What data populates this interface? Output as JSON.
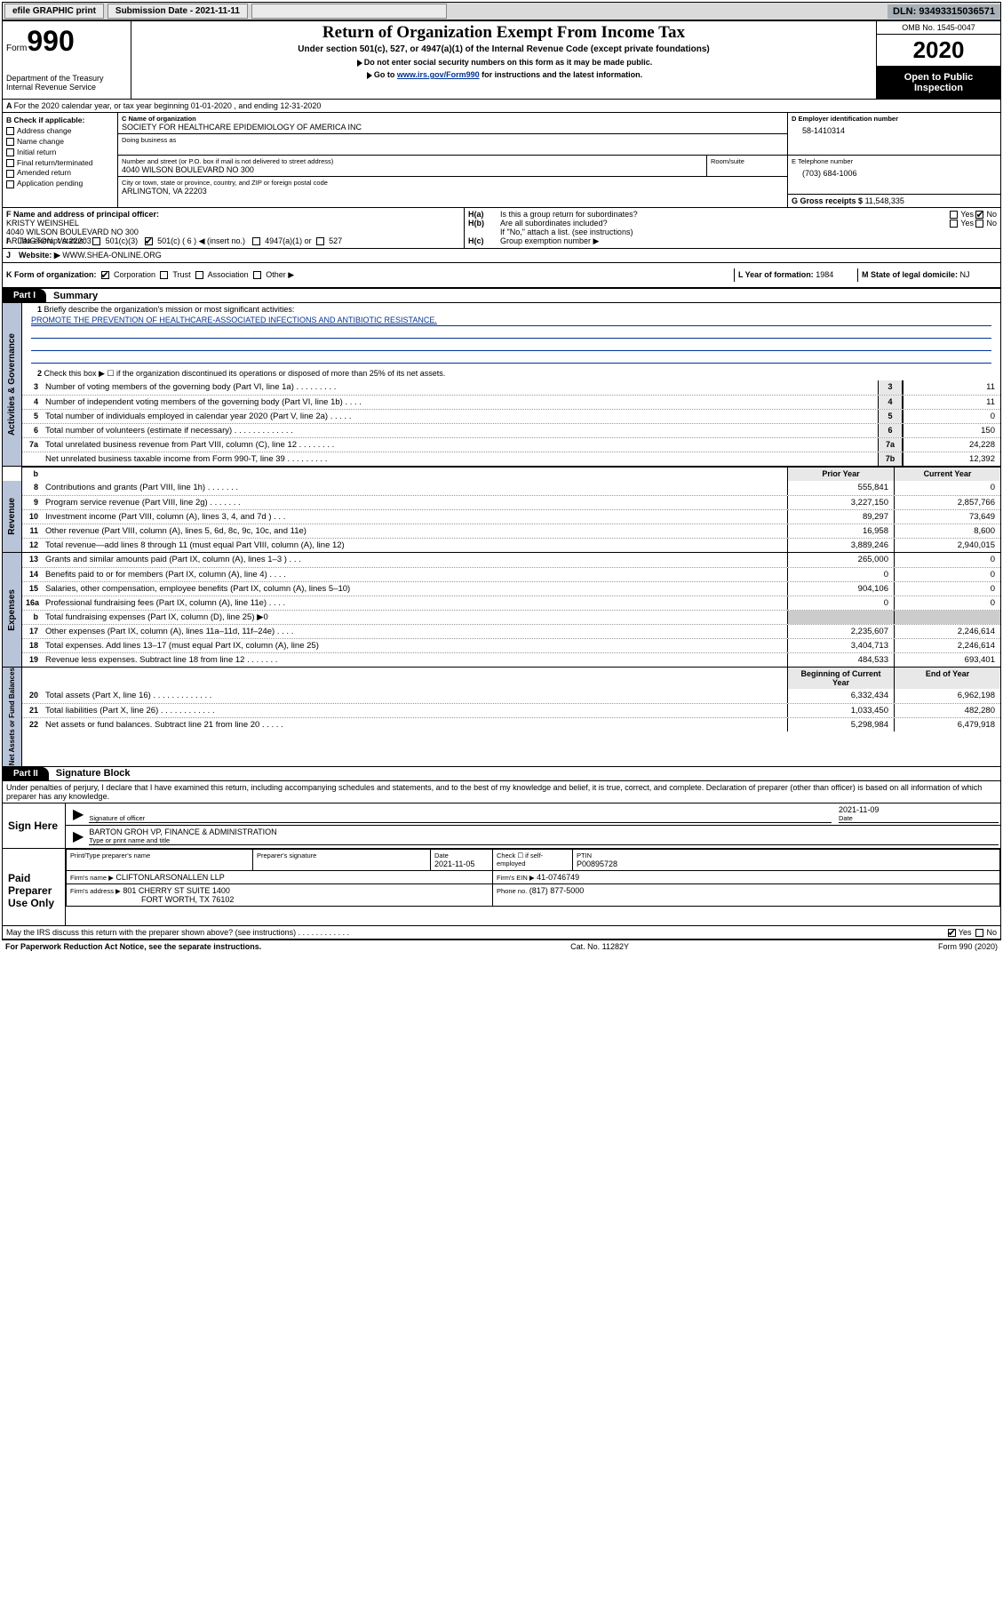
{
  "topbar": {
    "efile_label": "efile GRAPHIC print",
    "submission_label": "Submission Date - 2021-11-11",
    "dln_label": "DLN: 93493315036571"
  },
  "header": {
    "form_prefix": "Form",
    "form_number": "990",
    "dept": "Department of the Treasury\nInternal Revenue Service",
    "title": "Return of Organization Exempt From Income Tax",
    "sub": "Under section 501(c), 527, or 4947(a)(1) of the Internal Revenue Code (except private foundations)",
    "line_nossn": "Do not enter social security numbers on this form as it may be made public.",
    "line_goto_pre": "Go to ",
    "line_goto_link": "www.irs.gov/Form990",
    "line_goto_post": " for instructions and the latest information.",
    "omb": "OMB No. 1545-0047",
    "taxyear": "2020",
    "inspect": "Open to Public Inspection"
  },
  "A": {
    "text": "For the 2020 calendar year, or tax year beginning 01-01-2020     , and ending 12-31-2020"
  },
  "B": {
    "title": "B Check if applicable:",
    "items": [
      "Address change",
      "Name change",
      "Initial return",
      "Final return/terminated",
      "Amended return",
      "Application pending"
    ]
  },
  "C": {
    "name_label": "C Name of organization",
    "name": "SOCIETY FOR HEALTHCARE EPIDEMIOLOGY OF AMERICA INC",
    "dba_label": "Doing business as",
    "street_label": "Number and street (or P.O. box if mail is not delivered to street address)",
    "room_label": "Room/suite",
    "street": "4040 WILSON BOULEVARD NO 300",
    "city_label": "City or town, state or province, country, and ZIP or foreign postal code",
    "city": "ARLINGTON, VA  22203"
  },
  "D": {
    "label": "D Employer identification number",
    "ein": "58-1410314"
  },
  "E": {
    "label": "E Telephone number",
    "phone": "(703) 684-1006"
  },
  "G": {
    "label": "G Gross receipts $",
    "val": "11,548,335"
  },
  "F": {
    "label": "F Name and address of principal officer:",
    "name": "KRISTY WEINSHEL",
    "addr1": "4040 WILSON BOULEVARD NO 300",
    "addr2": "ARLINGTON, VA  22203"
  },
  "H": {
    "a": "Is this a group return for subordinates?",
    "b": "Are all subordinates included?",
    "b_note": "If \"No,\" attach a list. (see instructions)",
    "c": "Group exemption number ▶"
  },
  "I": {
    "label": "Tax-exempt status:",
    "opts": [
      "501(c)(3)",
      "501(c) ( 6 ) ◀ (insert no.)",
      "4947(a)(1) or",
      "527"
    ]
  },
  "J": {
    "label": "Website: ▶",
    "val": "WWW.SHEA-ONLINE.ORG"
  },
  "K": {
    "label": "K Form of organization:",
    "opts": [
      "Corporation",
      "Trust",
      "Association",
      "Other ▶"
    ]
  },
  "L": {
    "label": "L Year of formation:",
    "val": "1984"
  },
  "M": {
    "label": "M State of legal domicile:",
    "val": "NJ"
  },
  "partI": {
    "label": "Part I",
    "title": "Summary"
  },
  "gov": {
    "tab": "Activities & Governance",
    "l1": "Briefly describe the organization's mission or most significant activities:",
    "mission": "PROMOTE THE PREVENTION OF HEALTHCARE-ASSOCIATED INFECTIONS AND ANTIBIOTIC RESISTANCE.",
    "l2": "Check this box ▶ ☐  if the organization discontinued its operations or disposed of more than 25% of its net assets.",
    "rows": [
      {
        "n": "3",
        "d": "Number of voting members of the governing body (Part VI, line 1a)   .    .    .    .    .    .    .    .    .",
        "k": "3",
        "v": "11"
      },
      {
        "n": "4",
        "d": "Number of independent voting members of the governing body (Part VI, line 1b)    .    .    .    .",
        "k": "4",
        "v": "11"
      },
      {
        "n": "5",
        "d": "Total number of individuals employed in calendar year 2020 (Part V, line 2a)   .    .    .    .    .",
        "k": "5",
        "v": "0"
      },
      {
        "n": "6",
        "d": "Total number of volunteers (estimate if necessary)   .    .    .    .    .    .    .    .    .    .    .    .    .",
        "k": "6",
        "v": "150"
      },
      {
        "n": "7a",
        "d": "Total unrelated business revenue from Part VIII, column (C), line 12   .    .    .    .    .    .    .    .",
        "k": "7a",
        "v": "24,228"
      },
      {
        "n": "",
        "d": "Net unrelated business taxable income from Form 990-T, line 39   .    .    .    .    .    .    .    .    .",
        "k": "7b",
        "v": "12,392"
      }
    ]
  },
  "twocol_head": {
    "py": "Prior Year",
    "cy": "Current Year",
    "by": "Beginning of Current Year",
    "ey": "End of Year",
    "b": "b"
  },
  "rev": {
    "tab": "Revenue",
    "rows": [
      {
        "n": "8",
        "d": "Contributions and grants (Part VIII, line 1h)    .    .    .    .    .    .    .",
        "p": "555,841",
        "c": "0"
      },
      {
        "n": "9",
        "d": "Program service revenue (Part VIII, line 2g)    .    .    .    .    .    .    .",
        "p": "3,227,150",
        "c": "2,857,766"
      },
      {
        "n": "10",
        "d": "Investment income (Part VIII, column (A), lines 3, 4, and 7d )    .    .    .",
        "p": "89,297",
        "c": "73,649"
      },
      {
        "n": "11",
        "d": "Other revenue (Part VIII, column (A), lines 5, 6d, 8c, 9c, 10c, and 11e)",
        "p": "16,958",
        "c": "8,600"
      },
      {
        "n": "12",
        "d": "Total revenue—add lines 8 through 11 (must equal Part VIII, column (A), line 12)",
        "p": "3,889,246",
        "c": "2,940,015"
      }
    ]
  },
  "exp": {
    "tab": "Expenses",
    "rows": [
      {
        "n": "13",
        "d": "Grants and similar amounts paid (Part IX, column (A), lines 1–3 )   .    .    .",
        "p": "265,000",
        "c": "0"
      },
      {
        "n": "14",
        "d": "Benefits paid to or for members (Part IX, column (A), line 4)   .    .    .    .",
        "p": "0",
        "c": "0"
      },
      {
        "n": "15",
        "d": "Salaries, other compensation, employee benefits (Part IX, column (A), lines 5–10)",
        "p": "904,106",
        "c": "0"
      },
      {
        "n": "16a",
        "d": "Professional fundraising fees (Part IX, column (A), line 11e)   .    .    .    .",
        "p": "0",
        "c": "0"
      },
      {
        "n": "b",
        "d": "Total fundraising expenses (Part IX, column (D), line 25)  ▶0",
        "p": "",
        "c": ""
      },
      {
        "n": "17",
        "d": "Other expenses (Part IX, column (A), lines 11a–11d, 11f–24e)   .    .    .    .",
        "p": "2,235,607",
        "c": "2,246,614"
      },
      {
        "n": "18",
        "d": "Total expenses. Add lines 13–17 (must equal Part IX, column (A), line 25)",
        "p": "3,404,713",
        "c": "2,246,614"
      },
      {
        "n": "19",
        "d": "Revenue less expenses. Subtract line 18 from line 12   .    .    .    .    .    .    .",
        "p": "484,533",
        "c": "693,401"
      }
    ]
  },
  "net": {
    "tab": "Net Assets or Fund Balances",
    "rows": [
      {
        "n": "20",
        "d": "Total assets (Part X, line 16)   .    .    .    .    .    .    .    .    .    .    .    .    .",
        "p": "6,332,434",
        "c": "6,962,198"
      },
      {
        "n": "21",
        "d": "Total liabilities (Part X, line 26)   .    .    .    .    .    .    .    .    .    .    .    .",
        "p": "1,033,450",
        "c": "482,280"
      },
      {
        "n": "22",
        "d": "Net assets or fund balances. Subtract line 21 from line 20   .    .    .    .    .",
        "p": "5,298,984",
        "c": "6,479,918"
      }
    ]
  },
  "partII": {
    "label": "Part II",
    "title": "Signature Block"
  },
  "perjury": "Under penalties of perjury, I declare that I have examined this return, including accompanying schedules and statements, and to the best of my knowledge and belief, it is true, correct, and complete. Declaration of preparer (other than officer) is based on all information of which preparer has any knowledge.",
  "sign": {
    "here": "Sign Here",
    "sig_officer": "Signature of officer",
    "date": "Date",
    "date_val": "2021-11-09",
    "name": "BARTON GROH  VP, FINANCE & ADMINISTRATION",
    "type_name": "Type or print name and title"
  },
  "paid": {
    "label": "Paid Preparer Use Only",
    "h_name": "Print/Type preparer's name",
    "h_sig": "Preparer's signature",
    "h_date": "Date",
    "date_val": "2021-11-05",
    "h_check": "Check ☐ if self-employed",
    "h_ptin": "PTIN",
    "ptin": "P00895728",
    "firm_name_l": "Firm's name     ▶",
    "firm_name": "CLIFTONLARSONALLEN LLP",
    "firm_ein_l": "Firm's EIN ▶",
    "firm_ein": "41-0746749",
    "firm_addr_l": "Firm's address ▶",
    "firm_addr1": "801 CHERRY ST SUITE 1400",
    "firm_addr2": "FORT WORTH, TX  76102",
    "phone_l": "Phone no.",
    "phone": "(817) 877-5000",
    "discuss": "May the IRS discuss this return with the preparer shown above? (see instructions)    .    .    .    .    .    .    .    .    .    .    .    ."
  },
  "footer": {
    "left": "For Paperwork Reduction Act Notice, see the separate instructions.",
    "mid": "Cat. No. 11282Y",
    "right": "Form 990 (2020)"
  },
  "yesno": {
    "yes": "Yes",
    "no": "No"
  }
}
